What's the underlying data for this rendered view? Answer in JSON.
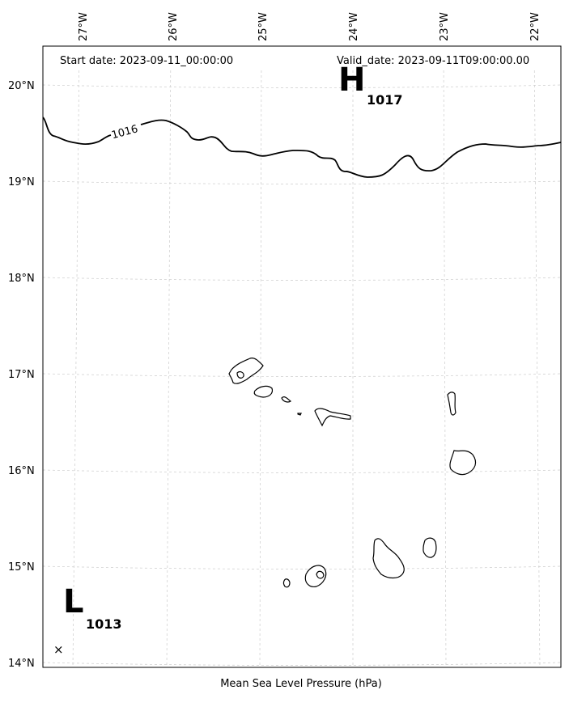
{
  "header": {
    "start_date": "Start date: 2023-09-11_00:00:00",
    "valid_date": "Valid_date: 2023-09-11T09:00:00.00"
  },
  "footer": {
    "caption": "Mean Sea Level Pressure (hPa)"
  },
  "axes": {
    "lon_labels": [
      "27°W",
      "26°W",
      "25°W",
      "24°W",
      "23°W",
      "22°W"
    ],
    "lat_labels": [
      "20°N",
      "19°N",
      "18°N",
      "17°N",
      "16°N",
      "15°N",
      "14°N"
    ]
  },
  "isobar": {
    "label": "1016"
  },
  "pressure_centers": {
    "high": {
      "symbol": "H",
      "value": "1017"
    },
    "low": {
      "symbol": "L",
      "value": "1013",
      "marker": "×"
    }
  },
  "islands": [
    "santo-antao",
    "sao-vicente",
    "santa-luzia",
    "branco",
    "sao-nicolau",
    "sal",
    "boa-vista",
    "brava",
    "fogo",
    "santiago",
    "maio"
  ]
}
